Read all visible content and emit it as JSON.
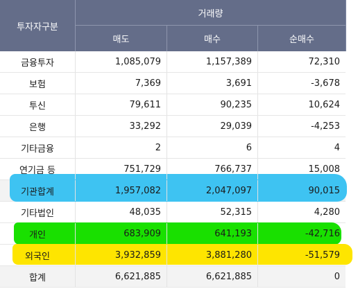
{
  "header": {
    "investor_type": "투자자구분",
    "trading_volume": "거래량",
    "sell": "매도",
    "buy": "매수",
    "net_buy": "순매수"
  },
  "rows": [
    {
      "name": "금융투자",
      "sell": "1,085,079",
      "buy": "1,157,389",
      "net": "72,310"
    },
    {
      "name": "보험",
      "sell": "7,369",
      "buy": "3,691",
      "net": "-3,678"
    },
    {
      "name": "투신",
      "sell": "79,611",
      "buy": "90,235",
      "net": "10,624"
    },
    {
      "name": "은행",
      "sell": "33,292",
      "buy": "29,039",
      "net": "-4,253"
    },
    {
      "name": "기타금융",
      "sell": "2",
      "buy": "6",
      "net": "4"
    },
    {
      "name": "연기금 등",
      "sell": "751,729",
      "buy": "766,737",
      "net": "15,008"
    },
    {
      "name": "기관합계",
      "sell": "1,957,082",
      "buy": "2,047,097",
      "net": "90,015"
    },
    {
      "name": "기타법인",
      "sell": "48,035",
      "buy": "52,315",
      "net": "4,280"
    },
    {
      "name": "개인",
      "sell": "683,909",
      "buy": "641,193",
      "net": "-42,716"
    },
    {
      "name": "외국인",
      "sell": "3,932,859",
      "buy": "3,881,280",
      "net": "-51,579"
    },
    {
      "name": "합계",
      "sell": "6,621,885",
      "buy": "6,621,885",
      "net": "0"
    }
  ],
  "colors": {
    "header_bg": "#646d89",
    "highlight_blue": "#3ec3f2",
    "highlight_green": "#19e000",
    "highlight_yellow": "#fee500"
  }
}
